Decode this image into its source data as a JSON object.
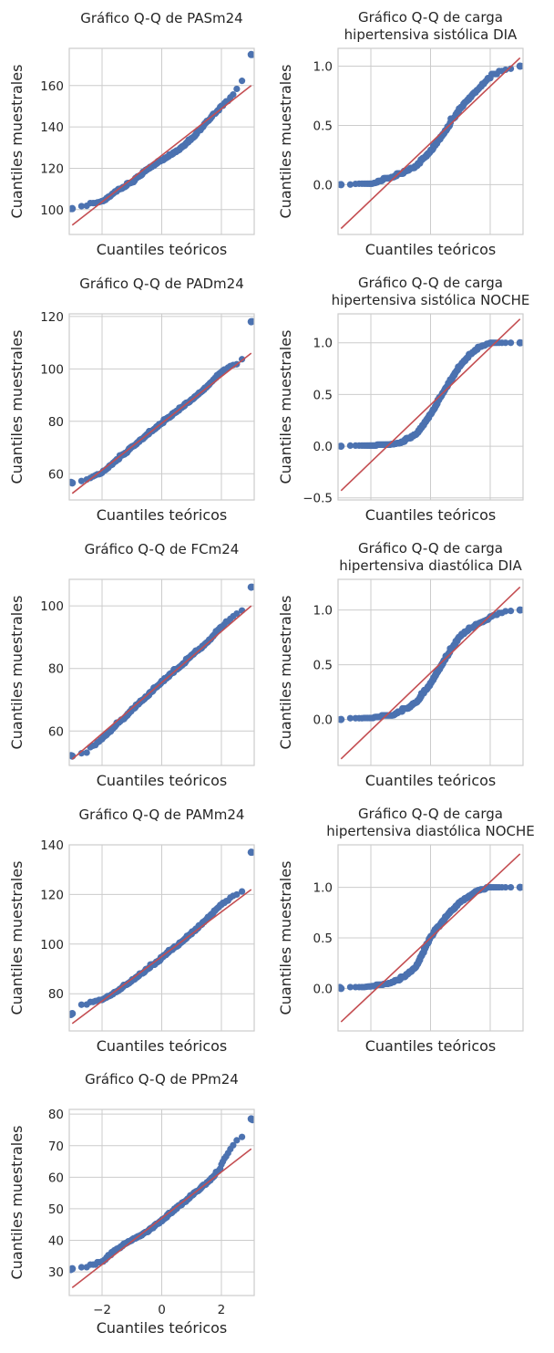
{
  "chart_data": [
    {
      "type": "scatter",
      "title": [
        "Gráfico Q-Q de PASm24"
      ],
      "xlabel": "Cuantiles teóricos",
      "ylabel": "Cuantiles muestrales",
      "xlim": [
        -3.1,
        3.1
      ],
      "ylim": [
        88,
        178
      ],
      "xticks": [
        -2,
        0,
        2
      ],
      "yticks": [
        100,
        120,
        140,
        160
      ],
      "ytick_labels": [
        "100",
        "120",
        "140",
        "160"
      ],
      "show_xtick_labels": false,
      "grid": true,
      "fit_line": [
        [
          -3.0,
          92.5
        ],
        [
          3.0,
          160
        ]
      ],
      "quantile_knots": [
        [
          -3.0,
          100.5
        ],
        [
          -2.5,
          102
        ],
        [
          -2.0,
          104
        ],
        [
          -1.5,
          109
        ],
        [
          -1.0,
          113
        ],
        [
          -0.5,
          119
        ],
        [
          0.0,
          123.5
        ],
        [
          0.5,
          128
        ],
        [
          1.0,
          134
        ],
        [
          1.5,
          142
        ],
        [
          2.0,
          150
        ],
        [
          2.4,
          156
        ],
        [
          2.6,
          160
        ],
        [
          2.75,
          163
        ],
        [
          2.85,
          164
        ],
        [
          3.0,
          175
        ]
      ]
    },
    {
      "type": "scatter",
      "title": [
        "Gráfico Q-Q de carga",
        "hipertensiva sistólica DIA"
      ],
      "xlabel": "Cuantiles teóricos",
      "ylabel": "Cuantiles muestrales",
      "xlim": [
        -3.1,
        3.1
      ],
      "ylim": [
        -0.42,
        1.15
      ],
      "xticks": [
        -2,
        0,
        2
      ],
      "yticks": [
        0.0,
        0.5,
        1.0
      ],
      "ytick_labels": [
        "0.0",
        "0.5",
        "1.0"
      ],
      "show_xtick_labels": false,
      "grid": true,
      "fit_line": [
        [
          -3.0,
          -0.37
        ],
        [
          3.0,
          1.07
        ]
      ],
      "quantile_knots": [
        [
          -3.0,
          0.0
        ],
        [
          -2.0,
          0.0
        ],
        [
          -1.5,
          0.04
        ],
        [
          -1.0,
          0.08
        ],
        [
          -0.5,
          0.15
        ],
        [
          0.0,
          0.27
        ],
        [
          0.5,
          0.45
        ],
        [
          1.0,
          0.64
        ],
        [
          1.5,
          0.78
        ],
        [
          2.0,
          0.9
        ],
        [
          2.5,
          0.98
        ],
        [
          3.0,
          1.0
        ]
      ]
    },
    {
      "type": "scatter",
      "title": [
        "Gráfico Q-Q de PADm24"
      ],
      "xlabel": "Cuantiles teóricos",
      "ylabel": "Cuantiles muestrales",
      "xlim": [
        -3.1,
        3.1
      ],
      "ylim": [
        50,
        121
      ],
      "xticks": [
        -2,
        0,
        2
      ],
      "yticks": [
        60,
        80,
        100,
        120
      ],
      "ytick_labels": [
        "60",
        "80",
        "100",
        "120"
      ],
      "show_xtick_labels": false,
      "grid": true,
      "fit_line": [
        [
          -3.0,
          52.5
        ],
        [
          3.0,
          106
        ]
      ],
      "quantile_knots": [
        [
          -3.0,
          56.5
        ],
        [
          -2.5,
          58
        ],
        [
          -2.0,
          60.5
        ],
        [
          -1.5,
          65
        ],
        [
          -1.0,
          70
        ],
        [
          -0.5,
          74.5
        ],
        [
          0.0,
          79
        ],
        [
          0.5,
          83.5
        ],
        [
          1.0,
          88
        ],
        [
          1.5,
          93
        ],
        [
          2.0,
          99
        ],
        [
          2.5,
          102
        ],
        [
          2.8,
          105
        ],
        [
          3.0,
          118
        ]
      ]
    },
    {
      "type": "scatter",
      "title": [
        "Gráfico Q-Q de carga",
        "hipertensiva sistólica NOCHE"
      ],
      "xlabel": "Cuantiles teóricos",
      "ylabel": "Cuantiles muestrales",
      "xlim": [
        -3.1,
        3.1
      ],
      "ylim": [
        -0.52,
        1.28
      ],
      "xticks": [
        -2,
        0,
        2
      ],
      "yticks": [
        -0.5,
        0.0,
        0.5,
        1.0
      ],
      "ytick_labels": [
        "−0.5",
        "0.0",
        "0.5",
        "1.0"
      ],
      "show_xtick_labels": false,
      "grid": true,
      "fit_line": [
        [
          -3.0,
          -0.43
        ],
        [
          3.0,
          1.23
        ]
      ],
      "quantile_knots": [
        [
          -3.0,
          0.0
        ],
        [
          -1.5,
          0.0
        ],
        [
          -1.0,
          0.03
        ],
        [
          -0.5,
          0.1
        ],
        [
          0.0,
          0.3
        ],
        [
          0.5,
          0.55
        ],
        [
          1.0,
          0.78
        ],
        [
          1.5,
          0.93
        ],
        [
          2.0,
          1.0
        ],
        [
          3.0,
          1.0
        ]
      ]
    },
    {
      "type": "scatter",
      "title": [
        "Gráfico Q-Q de FCm24"
      ],
      "xlabel": "Cuantiles teóricos",
      "ylabel": "Cuantiles muestrales",
      "xlim": [
        -3.1,
        3.1
      ],
      "ylim": [
        49,
        108.5
      ],
      "xticks": [
        -2,
        0,
        2
      ],
      "yticks": [
        60,
        80,
        100
      ],
      "ytick_labels": [
        "60",
        "80",
        "100"
      ],
      "show_xtick_labels": false,
      "grid": true,
      "fit_line": [
        [
          -3.0,
          51
        ],
        [
          3.0,
          100
        ]
      ],
      "quantile_knots": [
        [
          -3.0,
          52
        ],
        [
          -2.5,
          53.5
        ],
        [
          -2.0,
          57.5
        ],
        [
          -1.5,
          62
        ],
        [
          -1.0,
          66.5
        ],
        [
          -0.5,
          71
        ],
        [
          0.0,
          75.5
        ],
        [
          0.5,
          79.5
        ],
        [
          1.0,
          84
        ],
        [
          1.5,
          88
        ],
        [
          2.0,
          93.5
        ],
        [
          2.5,
          97.5
        ],
        [
          2.8,
          99
        ],
        [
          3.0,
          106
        ]
      ]
    },
    {
      "type": "scatter",
      "title": [
        "Gráfico Q-Q de carga",
        "hipertensiva diastólica DIA"
      ],
      "xlabel": "Cuantiles teóricos",
      "ylabel": "Cuantiles muestrales",
      "xlim": [
        -3.1,
        3.1
      ],
      "ylim": [
        -0.42,
        1.28
      ],
      "xticks": [
        -2,
        0,
        2
      ],
      "yticks": [
        0.0,
        0.5,
        1.0
      ],
      "ytick_labels": [
        "0.0",
        "0.5",
        "1.0"
      ],
      "show_xtick_labels": false,
      "grid": true,
      "fit_line": [
        [
          -3.0,
          -0.36
        ],
        [
          3.0,
          1.21
        ]
      ],
      "quantile_knots": [
        [
          -3.0,
          0.0
        ],
        [
          -1.5,
          0.02
        ],
        [
          -1.0,
          0.06
        ],
        [
          -0.5,
          0.14
        ],
        [
          0.0,
          0.32
        ],
        [
          0.5,
          0.55
        ],
        [
          1.0,
          0.76
        ],
        [
          1.5,
          0.86
        ],
        [
          2.0,
          0.93
        ],
        [
          2.5,
          0.99
        ],
        [
          3.0,
          1.0
        ]
      ]
    },
    {
      "type": "scatter",
      "title": [
        "Gráfico Q-Q de PAMm24"
      ],
      "xlabel": "Cuantiles teóricos",
      "ylabel": "Cuantiles muestrales",
      "xlim": [
        -3.1,
        3.1
      ],
      "ylim": [
        65,
        140
      ],
      "xticks": [
        -2,
        0,
        2
      ],
      "yticks": [
        80,
        100,
        120,
        140
      ],
      "ytick_labels": [
        "80",
        "100",
        "120",
        "140"
      ],
      "show_xtick_labels": false,
      "grid": true,
      "fit_line": [
        [
          -3.0,
          68
        ],
        [
          3.0,
          122
        ]
      ],
      "quantile_knots": [
        [
          -3.0,
          72
        ],
        [
          -2.7,
          75
        ],
        [
          -2.0,
          77.5
        ],
        [
          -1.5,
          81
        ],
        [
          -1.0,
          85
        ],
        [
          -0.5,
          89.5
        ],
        [
          0.0,
          94
        ],
        [
          0.5,
          99
        ],
        [
          1.0,
          104
        ],
        [
          1.5,
          110
        ],
        [
          2.0,
          116
        ],
        [
          2.5,
          120
        ],
        [
          2.8,
          122
        ],
        [
          3.0,
          137
        ]
      ]
    },
    {
      "type": "scatter",
      "title": [
        "Gráfico Q-Q de carga",
        "hipertensiva diastólica NOCHE"
      ],
      "xlabel": "Cuantiles teóricos",
      "ylabel": "Cuantiles muestrales",
      "xlim": [
        -3.1,
        3.1
      ],
      "ylim": [
        -0.42,
        1.42
      ],
      "xticks": [
        -2,
        0,
        2
      ],
      "yticks": [
        0.0,
        0.5,
        1.0
      ],
      "ytick_labels": [
        "0.0",
        "0.5",
        "1.0"
      ],
      "show_xtick_labels": false,
      "grid": true,
      "fit_line": [
        [
          -3.0,
          -0.33
        ],
        [
          3.0,
          1.33
        ]
      ],
      "quantile_knots": [
        [
          -3.0,
          0.0
        ],
        [
          -1.5,
          0.03
        ],
        [
          -1.0,
          0.08
        ],
        [
          -0.5,
          0.2
        ],
        [
          0.0,
          0.5
        ],
        [
          0.5,
          0.7
        ],
        [
          1.0,
          0.85
        ],
        [
          1.5,
          0.95
        ],
        [
          2.0,
          1.0
        ],
        [
          3.0,
          1.0
        ]
      ]
    },
    {
      "type": "scatter",
      "title": [
        "Gráfico Q-Q de PPm24"
      ],
      "xlabel": "Cuantiles teóricos",
      "ylabel": "Cuantiles muestrales",
      "xlim": [
        -3.1,
        3.1
      ],
      "ylim": [
        22.5,
        81.5
      ],
      "xticks": [
        -2,
        0,
        2
      ],
      "xtick_labels": [
        "−2",
        "0",
        "2"
      ],
      "yticks": [
        30,
        40,
        50,
        60,
        70,
        80
      ],
      "ytick_labels": [
        "30",
        "40",
        "50",
        "60",
        "70",
        "80"
      ],
      "show_xtick_labels": true,
      "grid": true,
      "fit_line": [
        [
          -3.0,
          25
        ],
        [
          3.0,
          69
        ]
      ],
      "quantile_knots": [
        [
          -3.0,
          31
        ],
        [
          -2.5,
          31.5
        ],
        [
          -2.0,
          33
        ],
        [
          -1.7,
          36
        ],
        [
          -1.0,
          40
        ],
        [
          -0.5,
          42.5
        ],
        [
          0.0,
          46
        ],
        [
          0.5,
          50
        ],
        [
          1.0,
          54
        ],
        [
          1.5,
          58
        ],
        [
          1.9,
          62
        ],
        [
          2.1,
          66
        ],
        [
          2.3,
          69
        ],
        [
          2.6,
          72
        ],
        [
          2.8,
          74
        ],
        [
          3.0,
          78.5
        ]
      ]
    }
  ]
}
